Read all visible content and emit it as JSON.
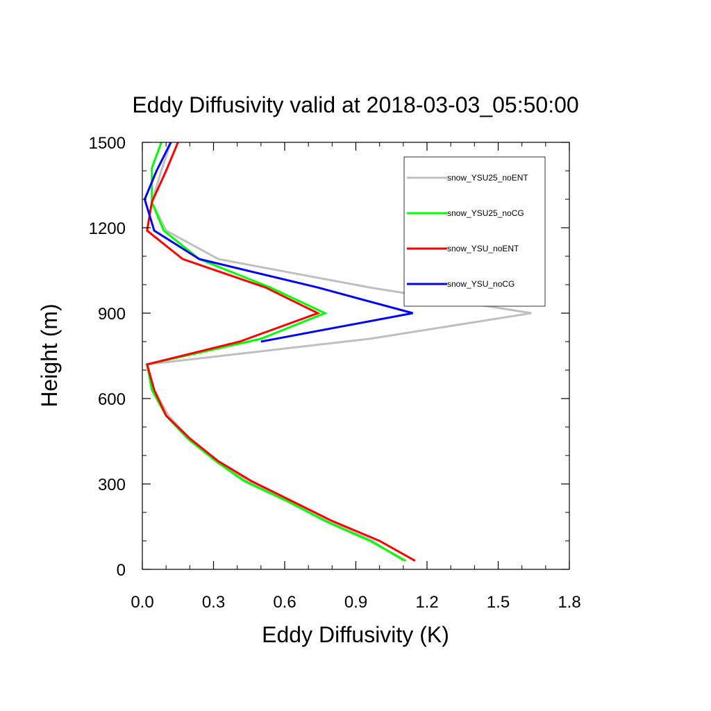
{
  "chart_data": {
    "type": "line",
    "title": "Eddy Diffusivity valid at 2018-03-03_05:50:00",
    "xlabel": "Eddy Diffusivity (K)",
    "ylabel": "Height (m)",
    "xlim": [
      0,
      1.8
    ],
    "ylim": [
      0,
      1500
    ],
    "xticks": [
      "0.0",
      "0.3",
      "0.6",
      "0.9",
      "1.2",
      "1.5",
      "1.8"
    ],
    "yticks": [
      "0",
      "300",
      "600",
      "900",
      "1200",
      "1500"
    ],
    "legend_position": "top-right",
    "series": [
      {
        "name": "snow_YSU25_noENT",
        "color": "#bfbfbf",
        "x": [
          1.1,
          0.97,
          0.78,
          0.62,
          0.44,
          0.32,
          0.2,
          0.11,
          0.05,
          0.02,
          0.96,
          1.64,
          0.96,
          0.32,
          0.1,
          0.04,
          0.08,
          0.12
        ],
        "y": [
          30,
          100,
          170,
          240,
          310,
          380,
          460,
          540,
          630,
          720,
          810,
          900,
          990,
          1090,
          1190,
          1290,
          1400,
          1500
        ]
      },
      {
        "name": "snow_YSU25_noCG",
        "color": "#00ff00",
        "x": [
          1.11,
          0.96,
          0.77,
          0.61,
          0.43,
          0.31,
          0.19,
          0.1,
          0.04,
          0.02,
          0.5,
          0.77,
          0.54,
          0.24,
          0.09,
          0.04,
          0.04,
          0.08
        ],
        "y": [
          30,
          100,
          170,
          240,
          310,
          380,
          460,
          540,
          630,
          720,
          810,
          900,
          990,
          1090,
          1190,
          1290,
          1410,
          1500
        ]
      },
      {
        "name": "snow_YSU_noENT",
        "color": "#ff0000",
        "x": [
          1.15,
          1.0,
          0.8,
          0.63,
          0.46,
          0.32,
          0.2,
          0.1,
          0.05,
          0.02,
          0.41,
          0.74,
          0.52,
          0.17,
          0.02,
          0.04,
          0.1,
          0.15
        ],
        "y": [
          30,
          100,
          170,
          240,
          310,
          380,
          460,
          540,
          630,
          720,
          800,
          900,
          990,
          1090,
          1190,
          1290,
          1400,
          1500
        ]
      },
      {
        "name": "snow_YSU_noCG",
        "color": "#0000ff",
        "x": [
          0.5,
          1.14,
          0.74,
          0.24,
          0.05,
          0.01,
          0.06,
          0.12
        ],
        "y": [
          800,
          900,
          990,
          1090,
          1190,
          1300,
          1400,
          1500
        ]
      }
    ]
  }
}
